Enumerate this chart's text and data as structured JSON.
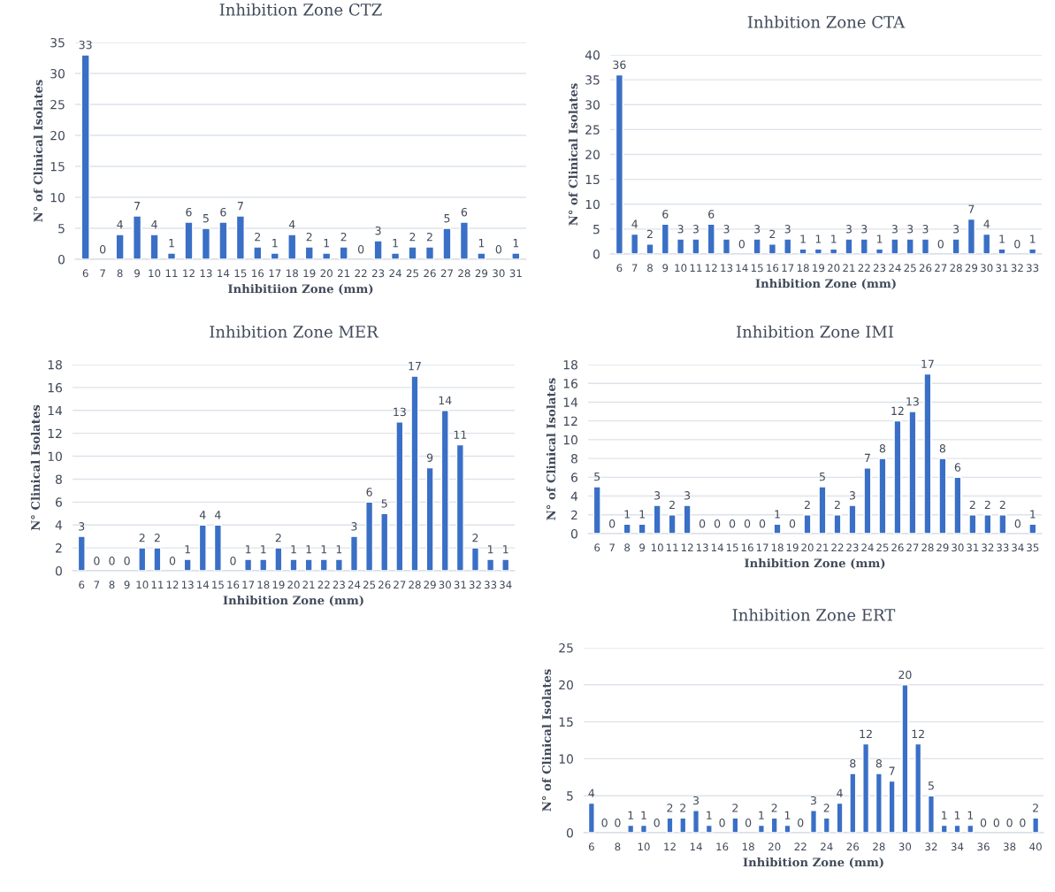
{
  "chart_data": [
    {
      "type": "bar",
      "title": "Inhibition Zone CTZ",
      "xlabel": "Inhibitiion Zone (mm)",
      "ylabel": "N° of Clinical Isolates",
      "color": "#3a6fc6",
      "grid": "y",
      "data_labels": true,
      "ylim": [
        0,
        35
      ],
      "yticks": [
        0,
        5,
        10,
        15,
        20,
        25,
        30,
        35
      ],
      "categories": [
        "6",
        "7",
        "8",
        "9",
        "10",
        "11",
        "12",
        "13",
        "14",
        "15",
        "16",
        "17",
        "18",
        "19",
        "20",
        "21",
        "22",
        "23",
        "24",
        "25",
        "26",
        "27",
        "28",
        "29",
        "30",
        "31"
      ],
      "values": [
        33,
        0,
        4,
        7,
        4,
        1,
        6,
        5,
        6,
        7,
        2,
        1,
        4,
        2,
        1,
        2,
        0,
        3,
        1,
        2,
        2,
        5,
        6,
        1,
        0,
        1
      ]
    },
    {
      "type": "bar",
      "title": "Inhbition Zone CTA",
      "xlabel": "Inhibition Zone (mm)",
      "ylabel": "N° of Clinical Isolates",
      "color": "#3a6fc6",
      "grid": "y",
      "data_labels": true,
      "ylim": [
        0,
        40
      ],
      "yticks": [
        0,
        5,
        10,
        15,
        20,
        25,
        30,
        35,
        40
      ],
      "categories": [
        "6",
        "7",
        "8",
        "9",
        "10",
        "11",
        "12",
        "13",
        "14",
        "15",
        "16",
        "17",
        "18",
        "19",
        "20",
        "21",
        "22",
        "23",
        "24",
        "25",
        "26",
        "27",
        "28",
        "29",
        "30",
        "31",
        "32",
        "33"
      ],
      "values": [
        36,
        4,
        2,
        6,
        3,
        3,
        6,
        3,
        0,
        3,
        2,
        3,
        1,
        1,
        1,
        3,
        3,
        1,
        3,
        3,
        3,
        0,
        3,
        7,
        4,
        1,
        0,
        1
      ]
    },
    {
      "type": "bar",
      "title": "Inhibition Zone MER",
      "xlabel": "Inhibition Zone (mm)",
      "ylabel": "N° Clinical Isolates",
      "color": "#3a6fc6",
      "grid": "y",
      "data_labels": true,
      "ylim": [
        0,
        18
      ],
      "yticks": [
        0,
        2,
        4,
        6,
        8,
        10,
        12,
        14,
        16,
        18
      ],
      "categories": [
        "6",
        "7",
        "8",
        "9",
        "10",
        "11",
        "12",
        "13",
        "14",
        "15",
        "16",
        "17",
        "18",
        "19",
        "20",
        "21",
        "22",
        "23",
        "24",
        "25",
        "26",
        "27",
        "28",
        "29",
        "30",
        "31",
        "32",
        "33",
        "34"
      ],
      "values": [
        3,
        0,
        0,
        0,
        2,
        2,
        0,
        1,
        4,
        4,
        0,
        1,
        1,
        2,
        1,
        1,
        1,
        1,
        3,
        6,
        5,
        13,
        17,
        9,
        14,
        11,
        2,
        1,
        1
      ]
    },
    {
      "type": "bar",
      "title": "Inhibition Zone IMI",
      "xlabel": "Inhibition Zone (mm)",
      "ylabel": "N° of Clinical Isolates",
      "color": "#3a6fc6",
      "grid": "y",
      "data_labels": true,
      "ylim": [
        0,
        18
      ],
      "yticks": [
        0,
        2,
        4,
        6,
        8,
        10,
        12,
        14,
        16,
        18
      ],
      "categories": [
        "6",
        "7",
        "8",
        "9",
        "10",
        "11",
        "12",
        "13",
        "14",
        "15",
        "16",
        "17",
        "18",
        "19",
        "20",
        "21",
        "22",
        "23",
        "24",
        "25",
        "26",
        "27",
        "28",
        "29",
        "30",
        "31",
        "32",
        "33",
        "34",
        "35"
      ],
      "values": [
        5,
        0,
        1,
        1,
        3,
        2,
        3,
        0,
        0,
        0,
        0,
        0,
        1,
        0,
        2,
        5,
        2,
        3,
        7,
        8,
        12,
        13,
        17,
        8,
        6,
        2,
        2,
        2,
        0,
        1
      ]
    },
    {
      "type": "bar",
      "title": "Inhibition Zone ERT",
      "xlabel": "Inhibition Zone (mm)",
      "ylabel": "N° of Clinical Isolates",
      "color": "#3a6fc6",
      "grid": "y",
      "data_labels": true,
      "ylim": [
        0,
        25
      ],
      "yticks": [
        0,
        5,
        10,
        15,
        20,
        25
      ],
      "categories": [
        "6",
        null,
        "8",
        null,
        "10",
        null,
        "12",
        null,
        "14",
        null,
        "16",
        null,
        "18",
        null,
        "20",
        null,
        "22",
        null,
        "24",
        null,
        "26",
        null,
        "28",
        null,
        "30",
        null,
        "32",
        null,
        "34",
        null,
        "36",
        null,
        "38",
        null,
        "40"
      ],
      "values": [
        4,
        0,
        0,
        1,
        1,
        0,
        2,
        2,
        3,
        1,
        0,
        2,
        0,
        1,
        2,
        1,
        0,
        3,
        2,
        4,
        8,
        12,
        8,
        7,
        20,
        12,
        5,
        1,
        1,
        1,
        0,
        0,
        0,
        0,
        2
      ]
    }
  ]
}
